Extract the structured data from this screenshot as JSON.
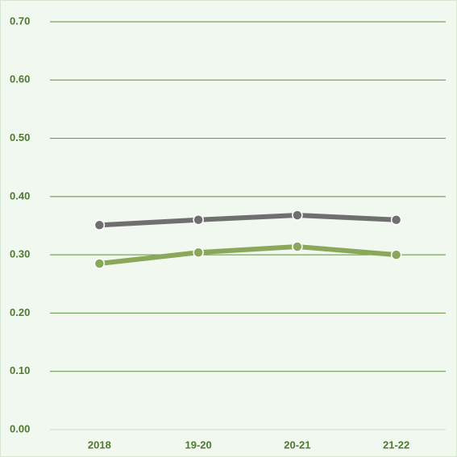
{
  "chart_data": {
    "type": "line",
    "categories": [
      "2018",
      "19-20",
      "20-21",
      "21-22"
    ],
    "series": [
      {
        "color": "#6f6f6f",
        "values": [
          0.351,
          0.36,
          0.368,
          0.36
        ]
      },
      {
        "color": "#8ba75a",
        "values": [
          0.285,
          0.304,
          0.314,
          0.3
        ]
      }
    ],
    "ylim": [
      0,
      0.7
    ],
    "yticks": [
      {
        "value": 0,
        "label": "0.00"
      },
      {
        "value": 0.1,
        "label": "0.10"
      },
      {
        "value": 0.2,
        "label": "0.20"
      },
      {
        "value": 0.3,
        "label": "0.30"
      },
      {
        "value": 0.4,
        "label": "0.40"
      },
      {
        "value": 0.5,
        "label": "0.50"
      },
      {
        "value": 0.6,
        "label": "0.60"
      },
      {
        "value": 0.7,
        "label": "0.70"
      }
    ],
    "grid": true
  }
}
